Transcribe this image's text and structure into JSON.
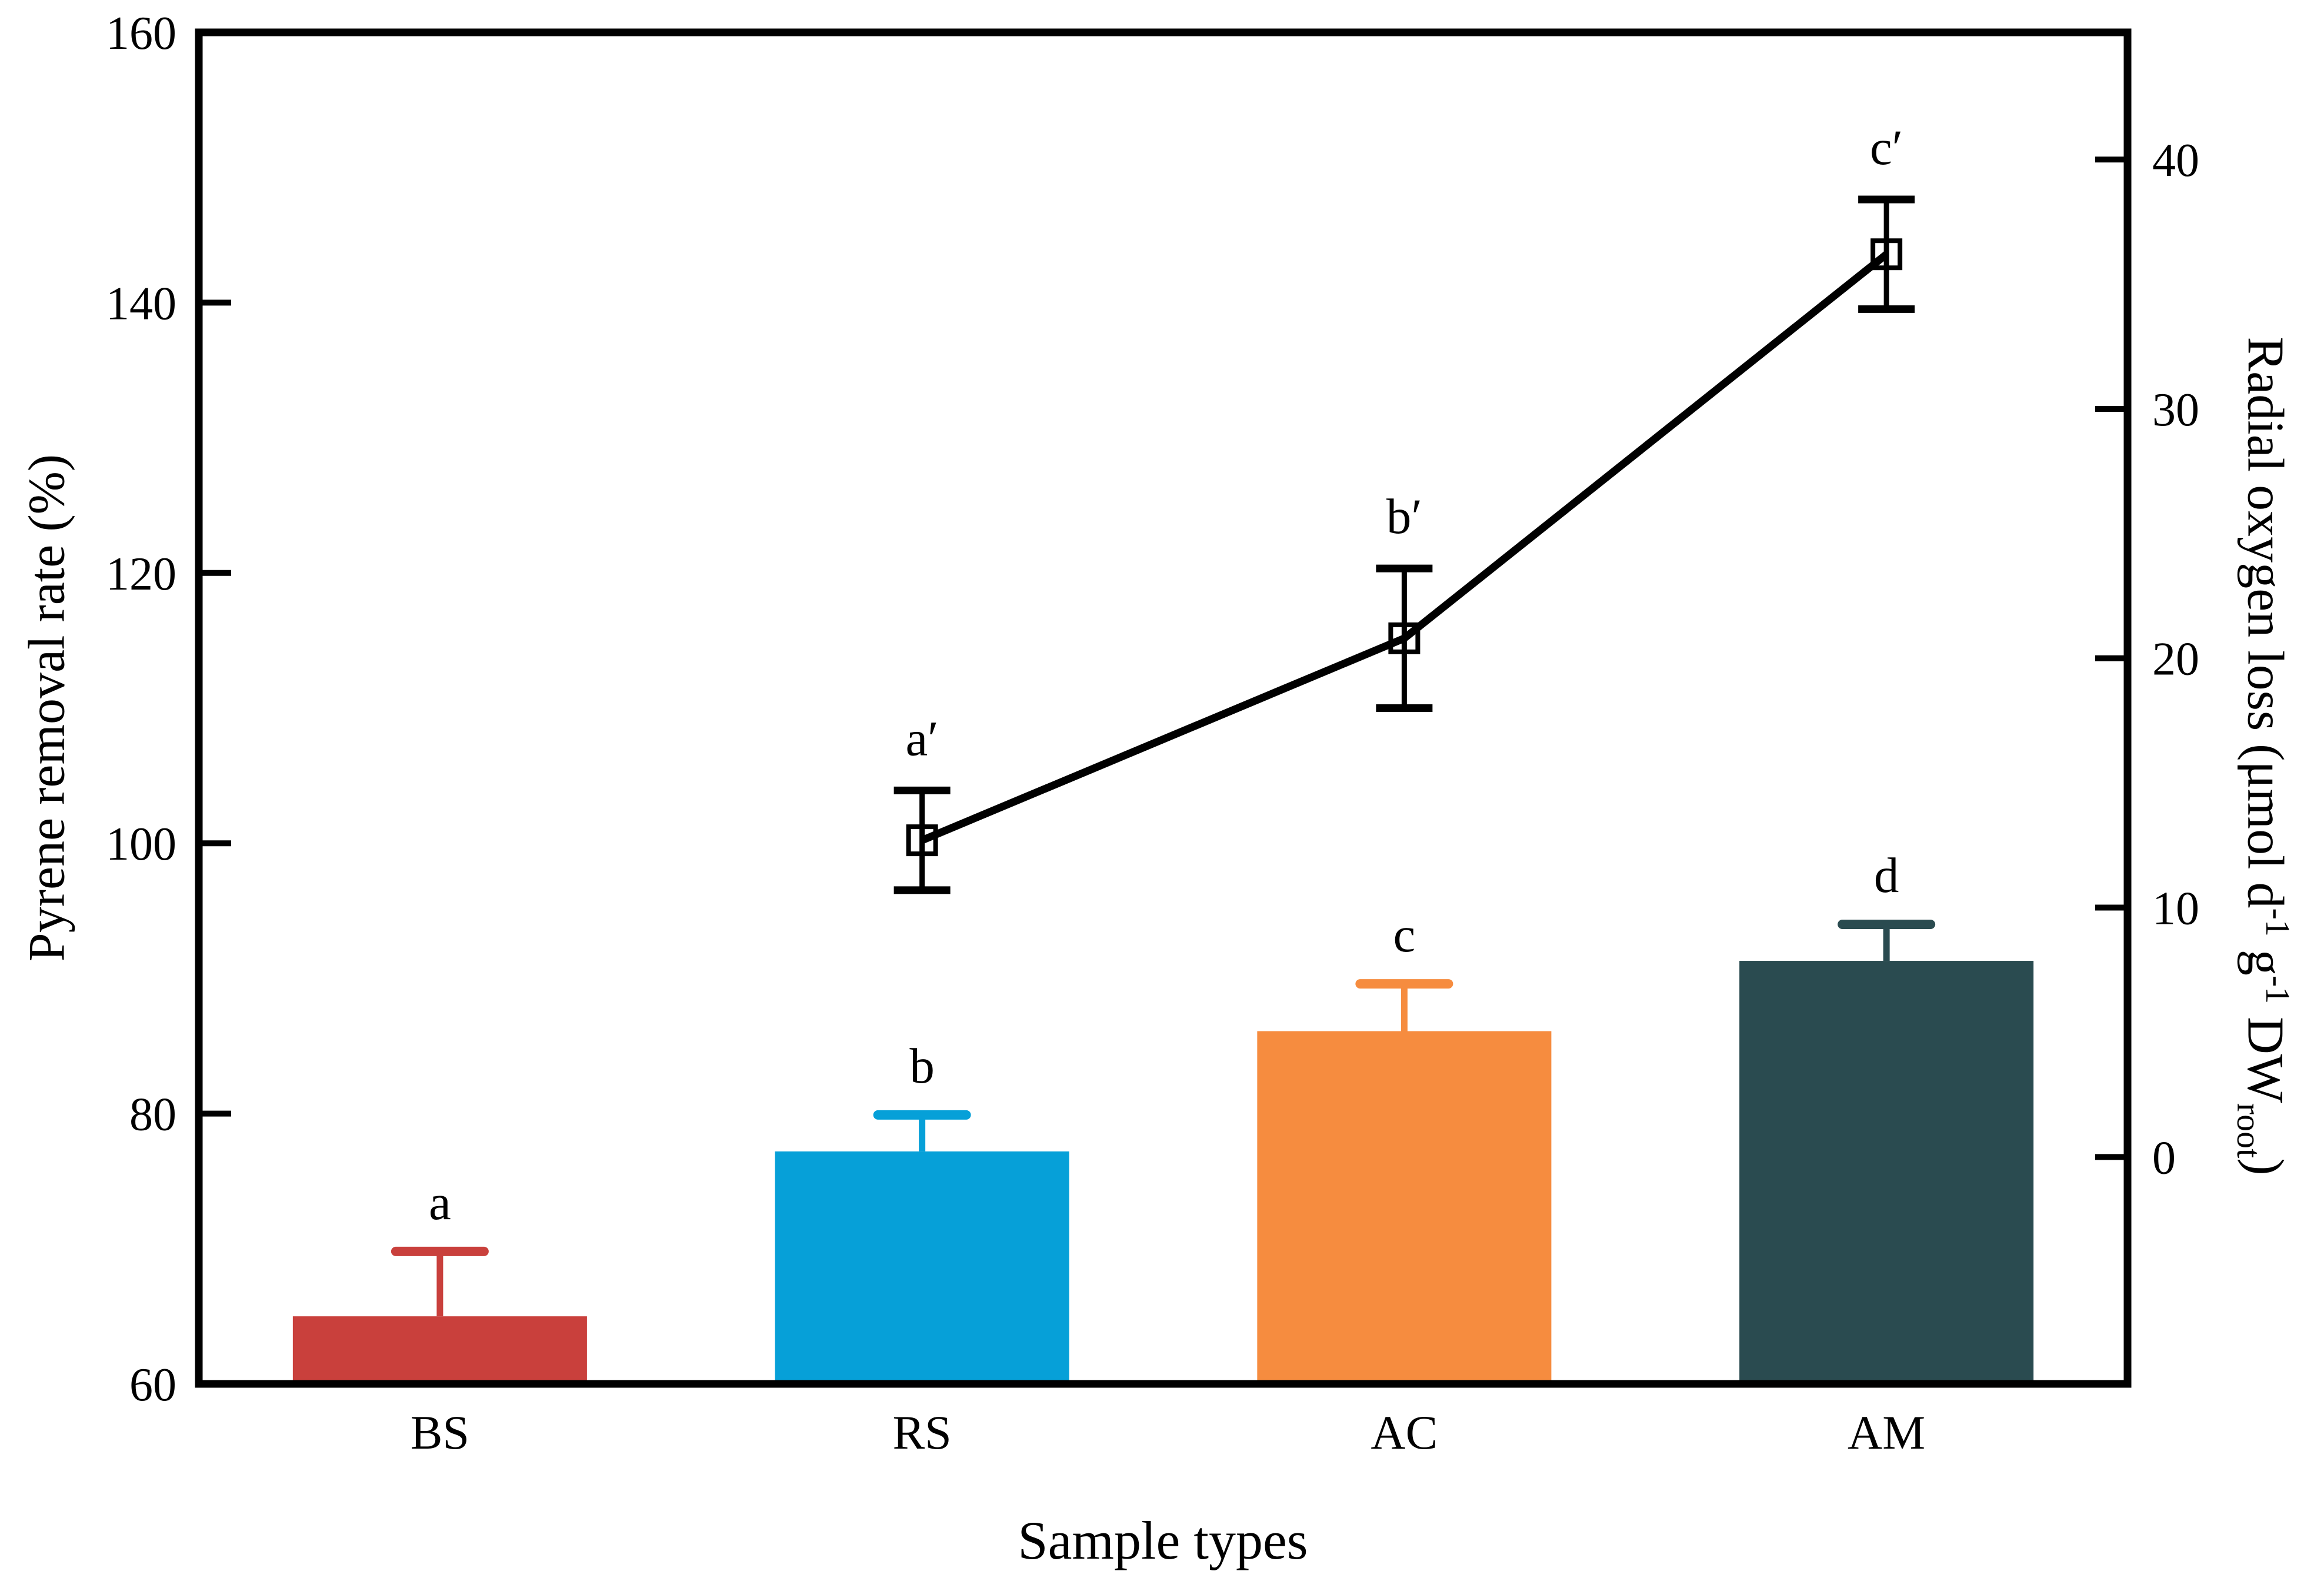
{
  "chart_data": {
    "type": "bar+line",
    "title": "",
    "xlabel": "Sample types",
    "categories": [
      "BS",
      "RS",
      "AC",
      "AM"
    ],
    "grid": false,
    "legend": "none",
    "left_axis": {
      "label": "Pyrene removal rate (%)",
      "min": 60,
      "max": 160,
      "ticks": [
        60,
        80,
        100,
        120,
        140,
        160
      ]
    },
    "right_axis": {
      "label_prefix": "Radial oxygen loss (μmol d",
      "label_sup1": "-1",
      "label_mid1": " g",
      "label_sup2": "-1",
      "label_mid2": " DW",
      "label_sub": "root",
      "label_suffix": ")",
      "ticks": [
        40,
        30,
        20,
        10,
        0
      ],
      "plot_top_value": 45.1,
      "plot_bottom_value": -9.1
    },
    "series": [
      {
        "name": "Pyrene removal rate",
        "kind": "bar",
        "axis": "left",
        "categories": [
          "BS",
          "RS",
          "AC",
          "AM"
        ],
        "values": [
          65.0,
          77.2,
          86.1,
          91.3
        ],
        "errors_plus": [
          4.8,
          2.7,
          3.5,
          2.7
        ],
        "sig_labels": [
          "a",
          "b",
          "c",
          "d"
        ],
        "bar_colors": [
          "#C9403C",
          "#06A0D8",
          "#F68C3F",
          "#2A4B50"
        ]
      },
      {
        "name": "Radial oxygen loss",
        "kind": "line",
        "axis": "right",
        "categories": [
          "RS",
          "AC",
          "AM"
        ],
        "values": [
          12.7,
          20.8,
          36.2
        ],
        "errors_plus": [
          2.0,
          2.8,
          2.2
        ],
        "errors_minus": [
          2.0,
          2.8,
          2.2
        ],
        "sig_labels": [
          "a′",
          "b′",
          "c′"
        ],
        "line_color": "#000000",
        "marker": "open-square"
      }
    ]
  }
}
